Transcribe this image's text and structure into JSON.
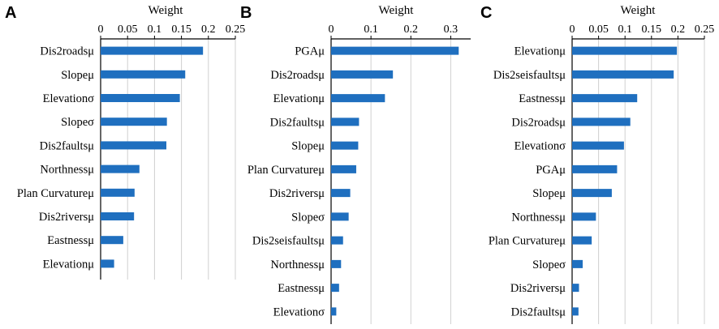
{
  "chart_data": [
    {
      "type": "bar",
      "orientation": "horizontal",
      "panel": "A",
      "title": "",
      "xlabel": "Weight",
      "ylabel": "",
      "xlim": [
        0,
        0.25
      ],
      "xticks": [
        "0",
        "0.05",
        "0.1",
        "0.15",
        "0.2",
        "0.25"
      ],
      "grid": true,
      "categories": [
        "Dis2roadsμ",
        "Slopeμ",
        "Elevationσ",
        "Slopeσ",
        "Dis2faultsμ",
        "Northnessμ",
        "Plan Curvatureμ",
        "Dis2riversμ",
        "Eastnessμ",
        "Elevationμ"
      ],
      "values": [
        0.19,
        0.157,
        0.147,
        0.123,
        0.122,
        0.072,
        0.063,
        0.062,
        0.042,
        0.025
      ]
    },
    {
      "type": "bar",
      "orientation": "horizontal",
      "panel": "B",
      "title": "",
      "xlabel": "Weight",
      "ylabel": "",
      "xlim": [
        0,
        0.35
      ],
      "xticks": [
        "0",
        "0.1",
        "0.2",
        "0.3"
      ],
      "grid": true,
      "categories": [
        "PGAμ",
        "Dis2roadsμ",
        "Elevationμ",
        "Dis2faultsμ",
        "Slopeμ",
        "Plan Curvatureμ",
        "Dis2riversμ",
        "Slopeσ",
        "Dis2seisfaultsμ",
        "Northnessμ",
        "Eastnessμ",
        "Elevationσ"
      ],
      "values": [
        0.32,
        0.155,
        0.135,
        0.07,
        0.068,
        0.063,
        0.048,
        0.044,
        0.03,
        0.025,
        0.02,
        0.013
      ]
    },
    {
      "type": "bar",
      "orientation": "horizontal",
      "panel": "C",
      "title": "",
      "xlabel": "Weight",
      "ylabel": "",
      "xlim": [
        0,
        0.25
      ],
      "xticks": [
        "0",
        "0.05",
        "0.1",
        "0.15",
        "0.2",
        "0.25"
      ],
      "grid": true,
      "categories": [
        "Elevationμ",
        "Dis2seisfaultsμ",
        "Eastnessμ",
        "Dis2roadsμ",
        "Elevationσ",
        "PGAμ",
        "Slopeμ",
        "Northnessμ",
        "Plan Curvatureμ",
        "Slopeσ",
        "Dis2riversμ",
        "Dis2faultsμ"
      ],
      "values": [
        0.198,
        0.192,
        0.123,
        0.11,
        0.098,
        0.085,
        0.075,
        0.045,
        0.037,
        0.02,
        0.013,
        0.012
      ]
    }
  ],
  "colors": {
    "bar": "#1f6fbf"
  }
}
